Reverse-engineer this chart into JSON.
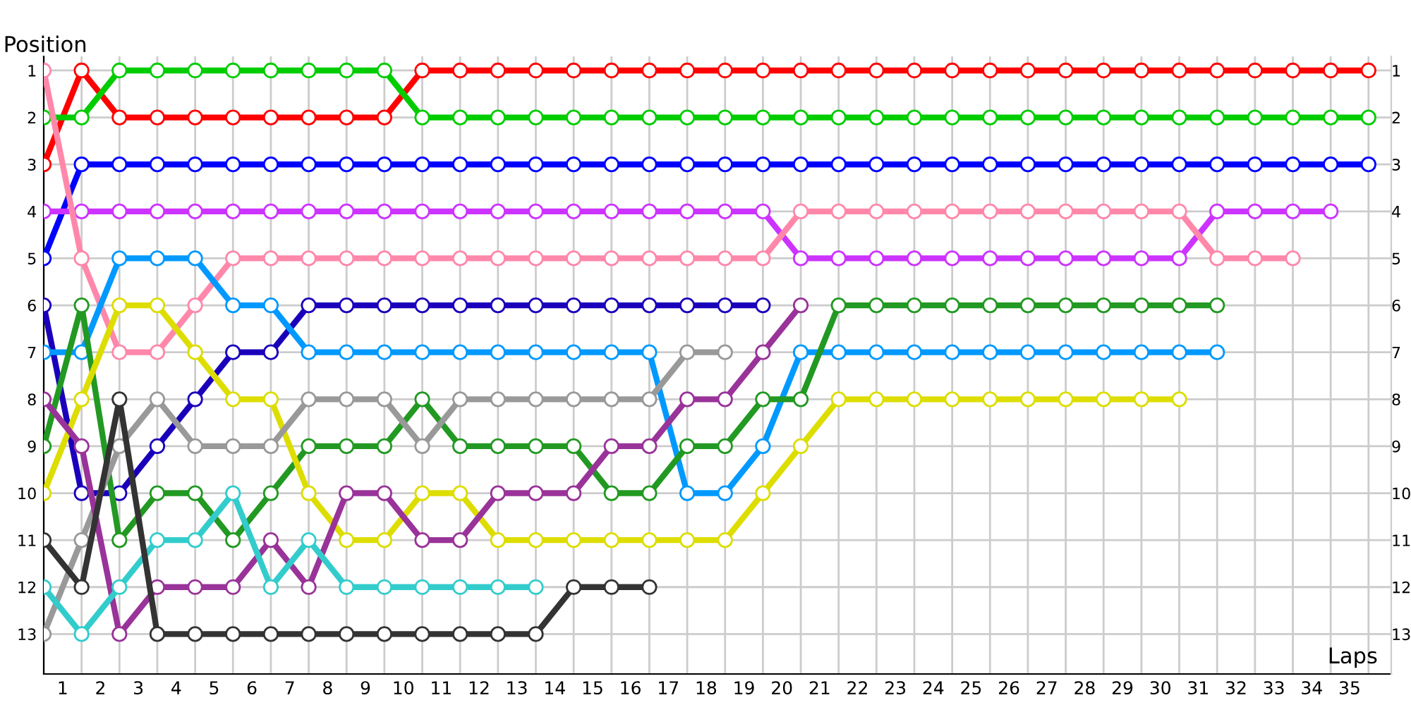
{
  "chart_data": {
    "type": "line",
    "xlabel": "Laps",
    "ylabel": "Position",
    "marker": "circle",
    "grid": true,
    "x": [
      0,
      1,
      2,
      3,
      4,
      5,
      6,
      7,
      8,
      9,
      10,
      11,
      12,
      13,
      14,
      15,
      16,
      17,
      18,
      19,
      20,
      21,
      22,
      23,
      24,
      25,
      26,
      27,
      28,
      29,
      30,
      31,
      32,
      33,
      34,
      35
    ],
    "xlim": [
      0,
      35.6
    ],
    "xticks": [
      {
        "value": 0.5,
        "label": "1"
      },
      {
        "value": 1.5,
        "label": "2"
      },
      {
        "value": 2.5,
        "label": "3"
      },
      {
        "value": 3.5,
        "label": "4"
      },
      {
        "value": 4.5,
        "label": "5"
      },
      {
        "value": 5.5,
        "label": "6"
      },
      {
        "value": 6.5,
        "label": "7"
      },
      {
        "value": 7.5,
        "label": "8"
      },
      {
        "value": 8.5,
        "label": "9"
      },
      {
        "value": 9.5,
        "label": "10"
      },
      {
        "value": 10.5,
        "label": "11"
      },
      {
        "value": 11.5,
        "label": "12"
      },
      {
        "value": 12.5,
        "label": "13"
      },
      {
        "value": 13.5,
        "label": "14"
      },
      {
        "value": 14.5,
        "label": "15"
      },
      {
        "value": 15.5,
        "label": "16"
      },
      {
        "value": 16.5,
        "label": "17"
      },
      {
        "value": 17.5,
        "label": "18"
      },
      {
        "value": 18.5,
        "label": "19"
      },
      {
        "value": 19.5,
        "label": "20"
      },
      {
        "value": 20.5,
        "label": "21"
      },
      {
        "value": 21.5,
        "label": "22"
      },
      {
        "value": 22.5,
        "label": "23"
      },
      {
        "value": 23.5,
        "label": "24"
      },
      {
        "value": 24.5,
        "label": "25"
      },
      {
        "value": 25.5,
        "label": "26"
      },
      {
        "value": 26.5,
        "label": "27"
      },
      {
        "value": 27.5,
        "label": "28"
      },
      {
        "value": 28.5,
        "label": "29"
      },
      {
        "value": 29.5,
        "label": "30"
      },
      {
        "value": 30.5,
        "label": "31"
      },
      {
        "value": 31.5,
        "label": "32"
      },
      {
        "value": 32.5,
        "label": "33"
      },
      {
        "value": 33.5,
        "label": "34"
      },
      {
        "value": 34.5,
        "label": "35"
      }
    ],
    "ylim": [
      13.85,
      0.7
    ],
    "yticks": [
      1,
      2,
      3,
      4,
      5,
      6,
      7,
      8,
      9,
      10,
      11,
      12,
      13
    ],
    "y2lim": [
      13.85,
      0.7
    ],
    "y2ticks": [
      1,
      2,
      3,
      4,
      5,
      6,
      7,
      8,
      9,
      10,
      11,
      12,
      13
    ],
    "series": [
      {
        "color": "#ff0000",
        "values": [
          3,
          1,
          2,
          2,
          2,
          2,
          2,
          2,
          2,
          2,
          1,
          1,
          1,
          1,
          1,
          1,
          1,
          1,
          1,
          1,
          1,
          1,
          1,
          1,
          1,
          1,
          1,
          1,
          1,
          1,
          1,
          1,
          1,
          1,
          1,
          1
        ]
      },
      {
        "color": "#00cc00",
        "values": [
          2,
          2,
          1,
          1,
          1,
          1,
          1,
          1,
          1,
          1,
          2,
          2,
          2,
          2,
          2,
          2,
          2,
          2,
          2,
          2,
          2,
          2,
          2,
          2,
          2,
          2,
          2,
          2,
          2,
          2,
          2,
          2,
          2,
          2,
          2,
          2
        ]
      },
      {
        "color": "#0000ff",
        "values": [
          5,
          3,
          3,
          3,
          3,
          3,
          3,
          3,
          3,
          3,
          3,
          3,
          3,
          3,
          3,
          3,
          3,
          3,
          3,
          3,
          3,
          3,
          3,
          3,
          3,
          3,
          3,
          3,
          3,
          3,
          3,
          3,
          3,
          3,
          3,
          3
        ]
      },
      {
        "color": "#cc33ff",
        "values": [
          4,
          4,
          4,
          4,
          4,
          4,
          4,
          4,
          4,
          4,
          4,
          4,
          4,
          4,
          4,
          4,
          4,
          4,
          4,
          4,
          5,
          5,
          5,
          5,
          5,
          5,
          5,
          5,
          5,
          5,
          5,
          4,
          4,
          4,
          4,
          null
        ]
      },
      {
        "color": "#ff88aa",
        "values": [
          1,
          5,
          7,
          7,
          6,
          5,
          5,
          5,
          5,
          5,
          5,
          5,
          5,
          5,
          5,
          5,
          5,
          5,
          5,
          5,
          4,
          4,
          4,
          4,
          4,
          4,
          4,
          4,
          4,
          4,
          4,
          5,
          5,
          5,
          null,
          null
        ]
      },
      {
        "color": "#1a00bb",
        "values": [
          6,
          10,
          10,
          9,
          8,
          7,
          7,
          6,
          6,
          6,
          6,
          6,
          6,
          6,
          6,
          6,
          6,
          6,
          6,
          6,
          null,
          null,
          null,
          null,
          null,
          null,
          null,
          null,
          null,
          null,
          null,
          null,
          null,
          null,
          null,
          null
        ]
      },
      {
        "color": "#0099ff",
        "values": [
          7,
          7,
          5,
          5,
          5,
          6,
          6,
          7,
          7,
          7,
          7,
          7,
          7,
          7,
          7,
          7,
          7,
          10,
          10,
          9,
          7,
          7,
          7,
          7,
          7,
          7,
          7,
          7,
          7,
          7,
          7,
          7,
          null,
          null,
          null,
          null
        ]
      },
      {
        "color": "#229922",
        "values": [
          9,
          6,
          11,
          10,
          10,
          11,
          10,
          9,
          9,
          9,
          8,
          9,
          9,
          9,
          9,
          10,
          10,
          9,
          9,
          8,
          8,
          6,
          6,
          6,
          6,
          6,
          6,
          6,
          6,
          6,
          6,
          6,
          null,
          null,
          null,
          null
        ]
      },
      {
        "color": "#dddd00",
        "values": [
          10,
          8,
          6,
          6,
          7,
          8,
          8,
          10,
          11,
          11,
          10,
          10,
          11,
          11,
          11,
          11,
          11,
          11,
          11,
          10,
          9,
          8,
          8,
          8,
          8,
          8,
          8,
          8,
          8,
          8,
          8,
          null,
          null,
          null,
          null,
          null
        ]
      },
      {
        "color": "#999999",
        "values": [
          13,
          11,
          9,
          8,
          9,
          9,
          9,
          8,
          8,
          8,
          9,
          8,
          8,
          8,
          8,
          8,
          8,
          7,
          7,
          null,
          null,
          null,
          null,
          null,
          null,
          null,
          null,
          null,
          null,
          null,
          null,
          null,
          null,
          null,
          null,
          null
        ]
      },
      {
        "color": "#993399",
        "values": [
          8,
          9,
          13,
          12,
          12,
          12,
          11,
          12,
          10,
          10,
          11,
          11,
          10,
          10,
          10,
          9,
          9,
          8,
          8,
          7,
          6,
          null,
          null,
          null,
          null,
          null,
          null,
          null,
          null,
          null,
          null,
          null,
          null,
          null,
          null,
          null
        ]
      },
      {
        "color": "#33cccc",
        "values": [
          12,
          13,
          12,
          11,
          11,
          10,
          12,
          11,
          12,
          12,
          12,
          12,
          12,
          12,
          null,
          null,
          null,
          null,
          null,
          null,
          null,
          null,
          null,
          null,
          null,
          null,
          null,
          null,
          null,
          null,
          null,
          null,
          null,
          null,
          null,
          null
        ]
      },
      {
        "color": "#333333",
        "values": [
          11,
          12,
          8,
          13,
          13,
          13,
          13,
          13,
          13,
          13,
          13,
          13,
          13,
          13,
          12,
          12,
          12,
          null,
          null,
          null,
          null,
          null,
          null,
          null,
          null,
          null,
          null,
          null,
          null,
          null,
          null,
          null,
          null,
          null,
          null,
          null
        ]
      }
    ]
  }
}
